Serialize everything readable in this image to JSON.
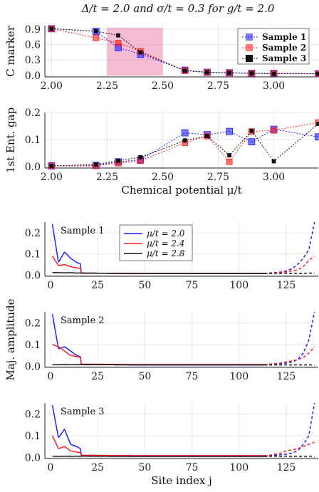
{
  "title": "Δ/t = 2.0 and σ/t = 0.3 for g/t = 2.0",
  "colors": {
    "sample1": "#1f1fff",
    "sample2": "#ff2020",
    "sample3": "#111111",
    "highlight": "#e86aa0",
    "grid": "#e6e6e6"
  },
  "chart_data": [
    {
      "type": "scatter",
      "ylabel": "C marker",
      "xlim": [
        1.97,
        3.2
      ],
      "ylim": [
        -0.03,
        0.97
      ],
      "xticks": [
        "2.00",
        "2.25",
        "2.50",
        "2.75",
        "3.00"
      ],
      "yticks": [
        "0.0",
        "0.3",
        "0.6",
        "0.9"
      ],
      "highlight_region": {
        "x": [
          2.25,
          2.5
        ],
        "y": [
          0,
          0.93
        ]
      },
      "legend": [
        "Sample 1",
        "Sample 2",
        "Sample 3"
      ],
      "legend_position": "top-right",
      "x": [
        2.0,
        2.2,
        2.3,
        2.4,
        2.6,
        2.7,
        2.8,
        2.9,
        3.0,
        3.2
      ],
      "series": [
        {
          "name": "Sample 1",
          "values": [
            0.91,
            0.86,
            0.54,
            0.41,
            0.1,
            0.06,
            0.05,
            0.04,
            0.04,
            0.03
          ]
        },
        {
          "name": "Sample 2",
          "values": [
            0.91,
            0.73,
            0.63,
            0.47,
            0.09,
            0.06,
            0.05,
            0.04,
            0.04,
            0.03
          ]
        },
        {
          "name": "Sample 3",
          "values": [
            0.91,
            0.86,
            0.78,
            0.45,
            0.09,
            0.06,
            0.05,
            0.04,
            0.03,
            0.03
          ]
        }
      ]
    },
    {
      "type": "scatter",
      "xlabel": "Chemical potential μ/t",
      "ylabel": "1st Ent. gap",
      "xlim": [
        1.97,
        3.2
      ],
      "ylim": [
        -0.005,
        0.2
      ],
      "xticks": [
        "2.00",
        "2.25",
        "2.50",
        "2.75",
        "3.00"
      ],
      "yticks": [
        "0.0",
        "0.1",
        "0.2"
      ],
      "x": [
        2.0,
        2.2,
        2.3,
        2.4,
        2.6,
        2.7,
        2.8,
        2.9,
        3.0,
        3.2
      ],
      "series": [
        {
          "name": "Sample 1",
          "values": [
            0.003,
            0.005,
            0.018,
            0.025,
            0.125,
            0.118,
            0.13,
            0.092,
            0.138,
            0.11
          ]
        },
        {
          "name": "Sample 2",
          "values": [
            0.003,
            0.003,
            0.013,
            0.022,
            0.088,
            0.113,
            0.018,
            0.13,
            0.134,
            0.163
          ]
        },
        {
          "name": "Sample 3",
          "values": [
            0.003,
            0.008,
            0.022,
            0.035,
            0.097,
            0.113,
            0.042,
            0.132,
            0.02,
            0.158
          ]
        }
      ]
    },
    {
      "type": "line",
      "annotation": "Sample 1",
      "ylabel": "",
      "xlim": [
        -3,
        142
      ],
      "ylim": [
        -0.005,
        0.25
      ],
      "xticks": [
        "0",
        "25",
        "50",
        "75",
        "100",
        "125"
      ],
      "yticks": [
        "0.0",
        "0.1",
        "0.2"
      ],
      "legend": [
        "μ/t = 2.0",
        "μ/t = 2.4",
        "μ/t = 2.8"
      ],
      "legend_position": "top-center",
      "profiles": [
        {
          "name": "μ/t = 2.0",
          "left": [
            0.24,
            0.06,
            0.11,
            0.08,
            0.06,
            0.05,
            0.04,
            0.03,
            0.025,
            0.02,
            0.02,
            0.018,
            0.015,
            0.012,
            0.01
          ],
          "right": [
            0.01,
            0.012,
            0.015,
            0.02,
            0.03,
            0.05,
            0.08,
            0.12,
            0.25
          ]
        },
        {
          "name": "μ/t = 2.4",
          "left": [
            0.09,
            0.045,
            0.05,
            0.04,
            0.035,
            0.03,
            0.028,
            0.025,
            0.02,
            0.018,
            0.016,
            0.014,
            0.012,
            0.011,
            0.01
          ],
          "right": [
            0.01,
            0.012,
            0.014,
            0.016,
            0.02,
            0.025,
            0.04,
            0.07,
            0.09
          ]
        },
        {
          "name": "μ/t = 2.8",
          "left": [
            0.012,
            0.012,
            0.011,
            0.012,
            0.01,
            0.011,
            0.012,
            0.01,
            0.011,
            0.012,
            0.01,
            0.011,
            0.01,
            0.011,
            0.01
          ],
          "right": [
            0.008,
            0.009,
            0.008,
            0.01,
            0.008,
            0.009,
            0.008,
            0.01,
            0.009
          ]
        }
      ]
    },
    {
      "type": "line",
      "annotation": "Sample 2",
      "ylabel": "Maj. amplitude",
      "xlim": [
        -3,
        142
      ],
      "ylim": [
        -0.005,
        0.25
      ],
      "xticks": [
        "0",
        "25",
        "50",
        "75",
        "100",
        "125"
      ],
      "yticks": [
        "0.0",
        "0.1",
        "0.2"
      ],
      "profiles": [
        {
          "name": "μ/t = 2.0",
          "left": [
            0.24,
            0.08,
            0.09,
            0.07,
            0.05,
            0.04,
            0.035,
            0.03,
            0.025,
            0.02,
            0.018,
            0.015,
            0.012,
            0.01,
            0.008
          ],
          "right": [
            0.008,
            0.01,
            0.012,
            0.015,
            0.02,
            0.03,
            0.06,
            0.12,
            0.25
          ]
        },
        {
          "name": "μ/t = 2.4",
          "left": [
            0.1,
            0.09,
            0.07,
            0.05,
            0.045,
            0.04,
            0.035,
            0.03,
            0.03,
            0.025,
            0.02,
            0.015,
            0.012,
            0.01,
            0.01
          ],
          "right": [
            0.01,
            0.012,
            0.015,
            0.02,
            0.025,
            0.03,
            0.04,
            0.06,
            0.09
          ]
        },
        {
          "name": "μ/t = 2.8",
          "left": [
            0.008,
            0.007,
            0.008,
            0.007,
            0.008,
            0.007,
            0.008,
            0.007,
            0.008,
            0.007,
            0.008,
            0.007,
            0.008,
            0.007,
            0.008
          ],
          "right": [
            0.006,
            0.007,
            0.006,
            0.007,
            0.006,
            0.007,
            0.006,
            0.007,
            0.006
          ]
        }
      ]
    },
    {
      "type": "line",
      "annotation": "Sample 3",
      "xlabel": "Site index j",
      "ylabel": "",
      "xlim": [
        -3,
        142
      ],
      "ylim": [
        -0.005,
        0.25
      ],
      "xticks": [
        "0",
        "25",
        "50",
        "75",
        "100",
        "125"
      ],
      "yticks": [
        "0.0",
        "0.1",
        "0.2"
      ],
      "profiles": [
        {
          "name": "μ/t = 2.0",
          "left": [
            0.24,
            0.09,
            0.13,
            0.06,
            0.05,
            0.035,
            0.03,
            0.025,
            0.02,
            0.015,
            0.012,
            0.01,
            0.01,
            0.01,
            0.01
          ],
          "right": [
            0.008,
            0.01,
            0.012,
            0.015,
            0.02,
            0.03,
            0.06,
            0.1,
            0.25
          ]
        },
        {
          "name": "μ/t = 2.4",
          "left": [
            0.1,
            0.04,
            0.05,
            0.03,
            0.025,
            0.02,
            0.018,
            0.015,
            0.012,
            0.012,
            0.011,
            0.01,
            0.01,
            0.01,
            0.01
          ],
          "right": [
            0.01,
            0.015,
            0.02,
            0.03,
            0.035,
            0.04,
            0.05,
            0.06,
            0.07
          ]
        },
        {
          "name": "μ/t = 2.8",
          "left": [
            0.006,
            0.005,
            0.006,
            0.005,
            0.006,
            0.005,
            0.006,
            0.005,
            0.006,
            0.005,
            0.006,
            0.005,
            0.006,
            0.005,
            0.006
          ],
          "right": [
            0.005,
            0.006,
            0.005,
            0.006,
            0.005,
            0.006,
            0.005,
            0.006,
            0.005
          ]
        }
      ]
    }
  ]
}
